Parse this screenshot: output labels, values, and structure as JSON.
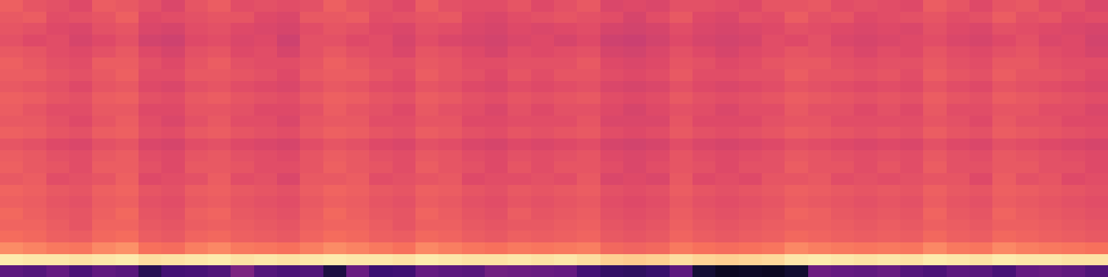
{
  "chart_data": {
    "type": "heatmap",
    "color": "magma",
    "tick_labels": false,
    "zlim": [
      0,
      100
    ],
    "cells": [
      [
        66,
        63,
        62,
        60,
        65,
        64,
        62,
        59,
        63,
        65,
        61,
        62,
        61,
        62,
        66,
        63,
        62,
        60,
        65,
        62,
        61,
        61,
        63,
        60,
        62,
        64,
        59,
        60,
        59,
        62,
        62,
        61,
        60,
        63,
        63,
        64,
        61,
        62,
        61,
        60,
        65,
        63,
        60,
        63,
        64,
        61,
        62,
        59
      ],
      [
        64,
        65,
        61,
        62,
        63,
        66,
        60,
        61,
        62,
        63,
        63,
        60,
        59,
        64,
        64,
        65,
        61,
        62,
        63,
        64,
        60,
        59,
        61,
        62,
        63,
        62,
        61,
        58,
        61,
        64,
        60,
        59,
        62,
        61,
        65,
        62,
        63,
        60,
        61,
        62,
        63,
        61,
        62,
        65,
        62,
        63,
        60,
        61
      ],
      [
        63,
        62,
        60,
        59,
        62,
        63,
        59,
        58,
        61,
        62,
        60,
        59,
        58,
        61,
        63,
        62,
        60,
        59,
        62,
        61,
        59,
        58,
        60,
        59,
        60,
        61,
        58,
        57,
        58,
        61,
        59,
        58,
        59,
        60,
        62,
        61,
        60,
        59,
        60,
        59,
        62,
        60,
        59,
        62,
        61,
        60,
        59,
        58
      ],
      [
        62,
        60,
        61,
        58,
        60,
        62,
        57,
        56,
        60,
        61,
        59,
        60,
        56,
        62,
        62,
        60,
        61,
        58,
        61,
        59,
        58,
        57,
        59,
        60,
        58,
        60,
        56,
        55,
        57,
        60,
        58,
        57,
        58,
        61,
        60,
        62,
        59,
        58,
        59,
        60,
        61,
        59,
        58,
        60,
        62,
        59,
        60,
        57
      ],
      [
        64,
        63,
        61,
        60,
        62,
        64,
        60,
        58,
        62,
        63,
        60,
        61,
        58,
        62,
        64,
        62,
        61,
        59,
        63,
        62,
        60,
        58,
        61,
        60,
        61,
        62,
        58,
        57,
        59,
        62,
        60,
        58,
        60,
        61,
        63,
        62,
        61,
        59,
        61,
        60,
        63,
        61,
        60,
        62,
        63,
        61,
        60,
        58
      ],
      [
        66,
        64,
        62,
        61,
        65,
        65,
        62,
        60,
        63,
        65,
        62,
        61,
        61,
        63,
        66,
        64,
        62,
        62,
        64,
        63,
        61,
        61,
        62,
        62,
        62,
        64,
        60,
        59,
        60,
        63,
        62,
        60,
        61,
        63,
        64,
        64,
        62,
        61,
        62,
        62,
        64,
        62,
        61,
        64,
        64,
        62,
        61,
        61
      ],
      [
        65,
        65,
        63,
        62,
        64,
        66,
        61,
        61,
        64,
        64,
        63,
        62,
        60,
        64,
        65,
        65,
        63,
        61,
        65,
        63,
        62,
        60,
        63,
        61,
        63,
        63,
        61,
        60,
        61,
        64,
        61,
        61,
        62,
        62,
        65,
        63,
        63,
        62,
        63,
        61,
        65,
        63,
        62,
        65,
        63,
        63,
        62,
        60
      ],
      [
        64,
        63,
        62,
        60,
        63,
        64,
        60,
        59,
        62,
        63,
        61,
        60,
        59,
        62,
        64,
        63,
        61,
        60,
        63,
        62,
        60,
        59,
        61,
        60,
        61,
        62,
        59,
        58,
        59,
        62,
        60,
        59,
        60,
        61,
        63,
        62,
        61,
        60,
        61,
        60,
        63,
        61,
        60,
        63,
        62,
        61,
        60,
        59
      ],
      [
        66,
        65,
        63,
        62,
        65,
        66,
        62,
        61,
        64,
        65,
        63,
        62,
        61,
        64,
        66,
        65,
        63,
        62,
        65,
        64,
        62,
        61,
        63,
        62,
        63,
        64,
        61,
        60,
        61,
        64,
        62,
        61,
        62,
        63,
        65,
        64,
        63,
        62,
        63,
        62,
        65,
        63,
        62,
        65,
        64,
        63,
        62,
        61
      ],
      [
        65,
        63,
        61,
        61,
        64,
        64,
        60,
        60,
        63,
        63,
        62,
        60,
        60,
        62,
        65,
        63,
        62,
        60,
        64,
        62,
        61,
        59,
        62,
        60,
        62,
        62,
        60,
        58,
        60,
        62,
        61,
        59,
        61,
        61,
        64,
        62,
        62,
        60,
        62,
        60,
        64,
        61,
        61,
        63,
        63,
        61,
        61,
        59
      ],
      [
        64,
        64,
        62,
        60,
        63,
        65,
        61,
        59,
        62,
        64,
        61,
        61,
        59,
        63,
        64,
        64,
        61,
        61,
        63,
        63,
        60,
        60,
        61,
        61,
        61,
        63,
        59,
        59,
        59,
        63,
        60,
        60,
        60,
        62,
        63,
        63,
        61,
        61,
        61,
        61,
        63,
        62,
        60,
        64,
        62,
        62,
        60,
        60
      ],
      [
        66,
        65,
        63,
        62,
        65,
        66,
        62,
        61,
        64,
        65,
        63,
        62,
        61,
        64,
        66,
        65,
        63,
        62,
        65,
        64,
        62,
        61,
        63,
        62,
        63,
        64,
        61,
        60,
        61,
        64,
        62,
        61,
        62,
        63,
        65,
        64,
        63,
        62,
        63,
        62,
        65,
        63,
        62,
        65,
        64,
        63,
        62,
        61
      ],
      [
        63,
        62,
        60,
        59,
        62,
        63,
        59,
        58,
        61,
        62,
        60,
        59,
        58,
        61,
        63,
        62,
        60,
        59,
        62,
        61,
        59,
        58,
        60,
        59,
        60,
        61,
        58,
        57,
        58,
        61,
        59,
        58,
        59,
        60,
        62,
        61,
        60,
        59,
        60,
        59,
        62,
        60,
        59,
        62,
        61,
        60,
        59,
        58
      ],
      [
        65,
        64,
        62,
        61,
        64,
        65,
        61,
        60,
        63,
        64,
        62,
        61,
        60,
        63,
        65,
        64,
        62,
        61,
        64,
        63,
        61,
        60,
        62,
        61,
        62,
        63,
        60,
        59,
        60,
        63,
        61,
        60,
        61,
        62,
        64,
        63,
        62,
        61,
        62,
        61,
        64,
        62,
        61,
        64,
        63,
        62,
        61,
        60
      ],
      [
        66,
        64,
        63,
        61,
        65,
        65,
        62,
        60,
        64,
        64,
        63,
        61,
        61,
        63,
        66,
        64,
        63,
        61,
        65,
        63,
        62,
        60,
        63,
        61,
        63,
        63,
        61,
        59,
        61,
        63,
        62,
        60,
        62,
        62,
        65,
        63,
        63,
        61,
        63,
        61,
        65,
        62,
        62,
        64,
        64,
        62,
        62,
        60
      ],
      [
        64,
        65,
        61,
        62,
        63,
        66,
        60,
        61,
        62,
        65,
        61,
        62,
        59,
        64,
        64,
        65,
        61,
        62,
        63,
        64,
        60,
        61,
        61,
        62,
        61,
        64,
        59,
        60,
        59,
        64,
        60,
        61,
        60,
        63,
        63,
        64,
        61,
        62,
        61,
        62,
        63,
        63,
        60,
        65,
        62,
        63,
        60,
        61
      ],
      [
        67,
        66,
        64,
        63,
        66,
        67,
        63,
        62,
        65,
        66,
        64,
        63,
        62,
        65,
        67,
        66,
        64,
        63,
        66,
        65,
        63,
        62,
        64,
        63,
        64,
        65,
        62,
        61,
        62,
        65,
        63,
        62,
        63,
        64,
        66,
        65,
        64,
        63,
        64,
        63,
        66,
        64,
        63,
        66,
        65,
        64,
        63,
        62
      ],
      [
        66,
        65,
        63,
        62,
        65,
        66,
        62,
        61,
        64,
        65,
        63,
        62,
        61,
        64,
        66,
        65,
        63,
        62,
        65,
        64,
        62,
        61,
        63,
        62,
        63,
        64,
        61,
        60,
        61,
        64,
        62,
        61,
        62,
        63,
        65,
        64,
        63,
        62,
        63,
        62,
        65,
        63,
        62,
        65,
        64,
        63,
        62,
        61
      ],
      [
        68,
        66,
        64,
        63,
        66,
        68,
        63,
        62,
        66,
        67,
        64,
        63,
        62,
        65,
        68,
        66,
        64,
        63,
        67,
        65,
        63,
        62,
        65,
        63,
        64,
        65,
        62,
        61,
        62,
        65,
        63,
        62,
        63,
        64,
        67,
        66,
        64,
        63,
        64,
        63,
        67,
        64,
        63,
        67,
        65,
        64,
        63,
        62
      ],
      [
        67,
        67,
        65,
        63,
        67,
        67,
        64,
        63,
        65,
        66,
        65,
        64,
        63,
        66,
        67,
        67,
        65,
        63,
        66,
        66,
        64,
        63,
        64,
        64,
        65,
        66,
        63,
        62,
        63,
        66,
        64,
        63,
        64,
        65,
        66,
        66,
        65,
        64,
        65,
        64,
        66,
        65,
        64,
        66,
        66,
        65,
        64,
        63
      ],
      [
        69,
        68,
        66,
        65,
        68,
        69,
        65,
        64,
        67,
        68,
        66,
        65,
        64,
        67,
        69,
        68,
        66,
        65,
        68,
        67,
        65,
        64,
        66,
        65,
        66,
        67,
        64,
        63,
        64,
        67,
        65,
        64,
        65,
        66,
        68,
        67,
        66,
        65,
        66,
        65,
        68,
        66,
        65,
        68,
        67,
        66,
        65,
        64
      ],
      [
        76,
        74,
        72,
        71,
        75,
        77,
        70,
        69,
        73,
        75,
        72,
        71,
        70,
        73,
        76,
        74,
        72,
        70,
        75,
        73,
        71,
        70,
        72,
        71,
        72,
        73,
        68,
        67,
        68,
        72,
        70,
        69,
        70,
        71,
        75,
        73,
        72,
        71,
        72,
        71,
        75,
        72,
        71,
        75,
        73,
        72,
        71,
        70
      ],
      [
        96,
        95,
        95,
        94,
        95,
        96,
        93,
        94,
        95,
        96,
        94,
        95,
        94,
        95,
        96,
        95,
        95,
        94,
        96,
        95,
        94,
        94,
        95,
        94,
        95,
        93,
        90,
        89,
        90,
        93,
        91,
        90,
        91,
        92,
        95,
        96,
        95,
        94,
        95,
        94,
        96,
        95,
        94,
        96,
        95,
        95,
        94,
        94
      ],
      [
        28,
        26,
        30,
        24,
        29,
        27,
        15,
        22,
        23,
        25,
        36,
        26,
        24,
        25,
        12,
        31,
        20,
        21,
        30,
        28,
        27,
        33,
        32,
        31,
        30,
        22,
        18,
        17,
        19,
        28,
        10,
        6,
        7,
        6,
        9,
        32,
        30,
        29,
        31,
        26,
        24,
        28,
        27,
        23,
        30,
        31,
        29,
        25
      ]
    ]
  }
}
